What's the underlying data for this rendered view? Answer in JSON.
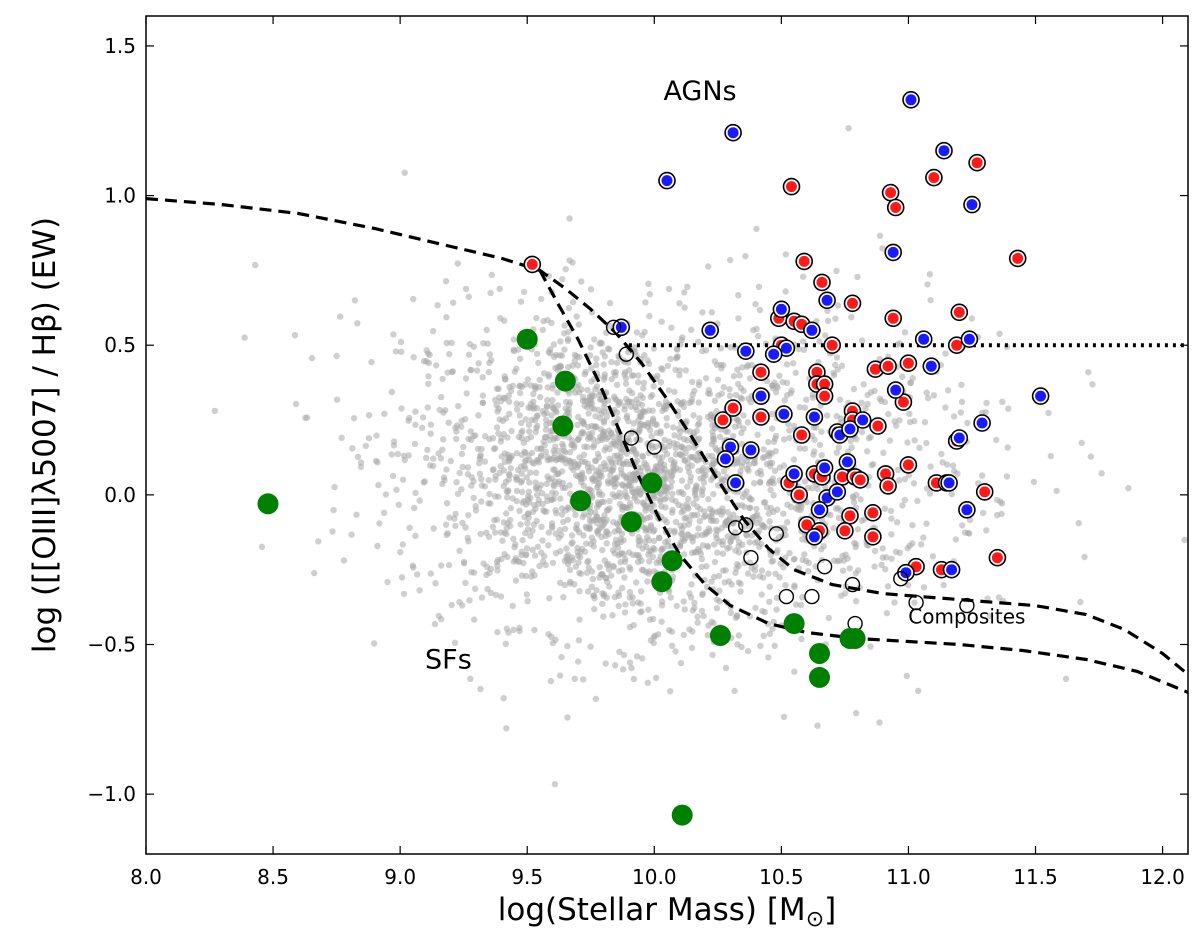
{
  "chart_data": {
    "type": "scatter",
    "title": "",
    "xlabel": "log(Stellar Mass) [M",
    "xlabel_sub": "⊙",
    "xlabel_end": "]",
    "ylabel": "log ([[OIII]λ5007] / Hβ) (EW)",
    "xlim": [
      8.0,
      12.1
    ],
    "ylim": [
      -1.2,
      1.6
    ],
    "xticks": [
      8.0,
      8.5,
      9.0,
      9.5,
      10.0,
      10.5,
      11.0,
      11.5,
      12.0
    ],
    "xtick_labels": [
      "8.0",
      "8.5",
      "9.0",
      "9.5",
      "10.0",
      "10.5",
      "11.0",
      "11.5",
      "12.0"
    ],
    "yticks": [
      -1.0,
      -0.5,
      0.0,
      0.5,
      1.0,
      1.5
    ],
    "ytick_labels": [
      "−1.0",
      "−0.5",
      "0.0",
      "0.5",
      "1.0",
      "1.5"
    ],
    "annotations": [
      {
        "text": "AGNs",
        "x": 10.18,
        "y": 1.32,
        "size": "large"
      },
      {
        "text": "SFs",
        "x": 9.19,
        "y": -0.58,
        "size": "large"
      },
      {
        "text": "Composites",
        "x": 11.23,
        "y": -0.43,
        "size": "small"
      }
    ],
    "background_sample": {
      "description": "comparison galaxy sample (grey points)",
      "color": "#a8a8a8",
      "count": 2600,
      "center_mass": 9.85,
      "center_ratio": 0.05
    },
    "series": [
      {
        "name": "AGN (red)",
        "color": "#ff1a1a",
        "edge": "#000000",
        "points": [
          [
            9.52,
            0.77
          ],
          [
            10.54,
            1.03
          ],
          [
            10.59,
            0.78
          ],
          [
            10.66,
            0.71
          ],
          [
            10.78,
            0.64
          ],
          [
            10.93,
            1.01
          ],
          [
            10.95,
            0.96
          ],
          [
            11.1,
            1.06
          ],
          [
            11.27,
            1.11
          ],
          [
            11.43,
            0.79
          ],
          [
            10.49,
            0.59
          ],
          [
            10.55,
            0.58
          ],
          [
            10.58,
            0.57
          ],
          [
            10.7,
            0.5
          ],
          [
            10.94,
            0.59
          ],
          [
            11.2,
            0.61
          ],
          [
            11.19,
            0.5
          ],
          [
            10.5,
            0.5
          ],
          [
            10.42,
            0.41
          ],
          [
            10.64,
            0.41
          ],
          [
            10.64,
            0.37
          ],
          [
            10.67,
            0.37
          ],
          [
            10.87,
            0.42
          ],
          [
            10.92,
            0.43
          ],
          [
            11.0,
            0.44
          ],
          [
            10.27,
            0.25
          ],
          [
            10.31,
            0.29
          ],
          [
            10.42,
            0.26
          ],
          [
            10.58,
            0.2
          ],
          [
            10.67,
            0.33
          ],
          [
            10.78,
            0.28
          ],
          [
            10.78,
            0.25
          ],
          [
            10.98,
            0.31
          ],
          [
            11.19,
            0.18
          ],
          [
            10.88,
            0.23
          ],
          [
            10.53,
            0.04
          ],
          [
            10.57,
            0.0
          ],
          [
            10.63,
            0.07
          ],
          [
            10.66,
            0.06
          ],
          [
            10.74,
            0.06
          ],
          [
            10.79,
            0.06
          ],
          [
            10.81,
            0.05
          ],
          [
            10.86,
            -0.06
          ],
          [
            10.91,
            0.07
          ],
          [
            10.92,
            0.03
          ],
          [
            11.0,
            0.1
          ],
          [
            11.11,
            0.04
          ],
          [
            11.3,
            0.01
          ],
          [
            10.6,
            -0.1
          ],
          [
            10.65,
            -0.12
          ],
          [
            10.77,
            -0.07
          ],
          [
            10.75,
            -0.12
          ],
          [
            10.86,
            -0.14
          ],
          [
            11.03,
            -0.24
          ],
          [
            11.13,
            -0.25
          ],
          [
            11.35,
            -0.21
          ]
        ]
      },
      {
        "name": "AGN (blue)",
        "color": "#1a1aff",
        "edge": "#000000",
        "points": [
          [
            10.31,
            1.21
          ],
          [
            10.05,
            1.05
          ],
          [
            11.01,
            1.32
          ],
          [
            11.14,
            1.15
          ],
          [
            11.25,
            0.97
          ],
          [
            10.94,
            0.81
          ],
          [
            9.87,
            0.56
          ],
          [
            10.22,
            0.55
          ],
          [
            10.5,
            0.62
          ],
          [
            10.52,
            0.49
          ],
          [
            10.62,
            0.55
          ],
          [
            10.68,
            0.65
          ],
          [
            11.06,
            0.52
          ],
          [
            11.09,
            0.43
          ],
          [
            11.24,
            0.52
          ],
          [
            10.36,
            0.48
          ],
          [
            10.47,
            0.47
          ],
          [
            10.42,
            0.33
          ],
          [
            10.95,
            0.35
          ],
          [
            10.3,
            0.16
          ],
          [
            10.28,
            0.12
          ],
          [
            10.38,
            0.15
          ],
          [
            10.51,
            0.27
          ],
          [
            10.63,
            0.26
          ],
          [
            10.72,
            0.21
          ],
          [
            10.73,
            0.2
          ],
          [
            10.77,
            0.22
          ],
          [
            10.82,
            0.25
          ],
          [
            11.2,
            0.19
          ],
          [
            11.29,
            0.24
          ],
          [
            11.52,
            0.33
          ],
          [
            10.32,
            0.04
          ],
          [
            10.55,
            0.07
          ],
          [
            10.67,
            0.09
          ],
          [
            10.68,
            -0.01
          ],
          [
            10.72,
            0.01
          ],
          [
            10.76,
            0.11
          ],
          [
            10.65,
            -0.05
          ],
          [
            10.63,
            -0.14
          ],
          [
            11.15,
            0.04
          ],
          [
            11.16,
            0.04
          ],
          [
            11.23,
            -0.05
          ],
          [
            10.99,
            -0.26
          ],
          [
            11.17,
            -0.25
          ]
        ]
      },
      {
        "name": "Composites (open circles)",
        "color": "none",
        "edge": "#000000",
        "points": [
          [
            9.84,
            0.56
          ],
          [
            9.89,
            0.47
          ],
          [
            9.91,
            0.19
          ],
          [
            10.0,
            0.16
          ],
          [
            10.32,
            -0.11
          ],
          [
            10.36,
            -0.1
          ],
          [
            10.38,
            -0.21
          ],
          [
            10.48,
            -0.13
          ],
          [
            10.52,
            -0.34
          ],
          [
            10.62,
            -0.34
          ],
          [
            10.67,
            -0.24
          ],
          [
            10.78,
            -0.3
          ],
          [
            10.79,
            -0.43
          ],
          [
            10.97,
            -0.28
          ],
          [
            11.03,
            -0.36
          ],
          [
            11.23,
            -0.37
          ]
        ]
      },
      {
        "name": "Star-forming (green)",
        "color": "#008000",
        "edge": "#008000",
        "points": [
          [
            8.48,
            -0.03
          ],
          [
            9.5,
            0.52
          ],
          [
            9.65,
            0.38
          ],
          [
            9.64,
            0.23
          ],
          [
            9.71,
            -0.02
          ],
          [
            9.99,
            0.04
          ],
          [
            9.91,
            -0.09
          ],
          [
            10.07,
            -0.22
          ],
          [
            10.03,
            -0.29
          ],
          [
            10.26,
            -0.47
          ],
          [
            10.55,
            -0.43
          ],
          [
            10.65,
            -0.53
          ],
          [
            10.65,
            -0.61
          ],
          [
            10.77,
            -0.48
          ],
          [
            10.79,
            -0.48
          ],
          [
            10.11,
            -1.07
          ]
        ]
      }
    ],
    "lines": [
      {
        "name": "upper demarcation",
        "style": "dashed",
        "points": [
          [
            8.0,
            0.99
          ],
          [
            8.3,
            0.97
          ],
          [
            8.6,
            0.94
          ],
          [
            8.9,
            0.89
          ],
          [
            9.2,
            0.83
          ],
          [
            9.4,
            0.79
          ],
          [
            9.55,
            0.75
          ],
          [
            9.65,
            0.69
          ],
          [
            9.75,
            0.62
          ],
          [
            9.85,
            0.54
          ],
          [
            9.95,
            0.44
          ],
          [
            10.05,
            0.32
          ],
          [
            10.15,
            0.19
          ],
          [
            10.25,
            0.05
          ],
          [
            10.35,
            -0.08
          ],
          [
            10.45,
            -0.18
          ],
          [
            10.55,
            -0.25
          ],
          [
            10.7,
            -0.3
          ],
          [
            10.9,
            -0.33
          ],
          [
            11.2,
            -0.35
          ],
          [
            11.5,
            -0.37
          ],
          [
            11.7,
            -0.4
          ],
          [
            11.85,
            -0.45
          ],
          [
            12.0,
            -0.53
          ],
          [
            12.1,
            -0.6
          ]
        ]
      },
      {
        "name": "lower demarcation",
        "style": "dashed",
        "points": [
          [
            9.55,
            0.75
          ],
          [
            9.62,
            0.64
          ],
          [
            9.7,
            0.52
          ],
          [
            9.78,
            0.38
          ],
          [
            9.86,
            0.22
          ],
          [
            9.94,
            0.06
          ],
          [
            10.02,
            -0.08
          ],
          [
            10.1,
            -0.2
          ],
          [
            10.2,
            -0.3
          ],
          [
            10.3,
            -0.37
          ],
          [
            10.45,
            -0.43
          ],
          [
            10.6,
            -0.46
          ],
          [
            10.8,
            -0.48
          ],
          [
            11.0,
            -0.49
          ],
          [
            11.2,
            -0.5
          ],
          [
            11.45,
            -0.52
          ],
          [
            11.7,
            -0.55
          ],
          [
            11.9,
            -0.59
          ],
          [
            12.1,
            -0.66
          ]
        ]
      },
      {
        "name": "AGN threshold",
        "style": "dotted",
        "points": [
          [
            9.9,
            0.5
          ],
          [
            12.1,
            0.5
          ]
        ]
      }
    ]
  }
}
